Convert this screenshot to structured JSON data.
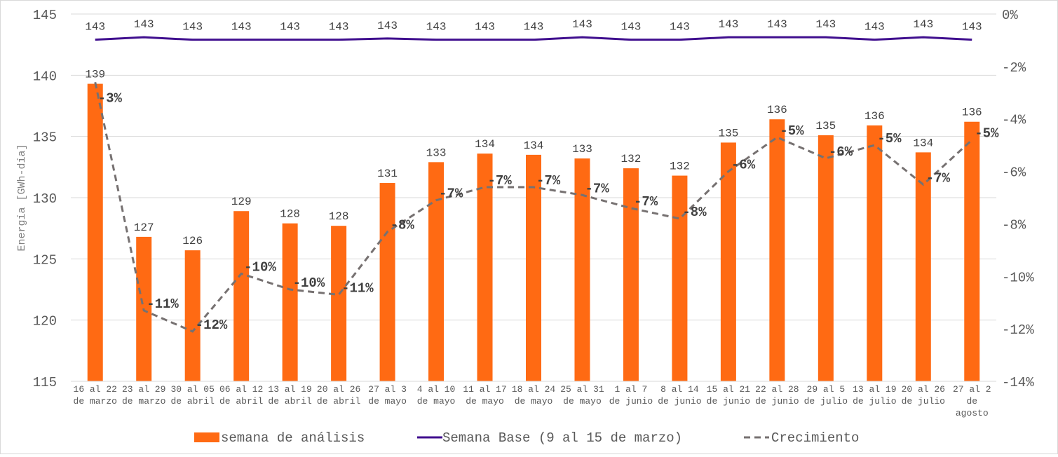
{
  "chart_data": {
    "type": "bar",
    "title": "",
    "xlabel": "",
    "ylabel": "Energía [GWh-día]",
    "ylim": [
      115,
      145
    ],
    "yticks": [
      115,
      120,
      125,
      130,
      135,
      140,
      145
    ],
    "y2lim": [
      -14,
      0
    ],
    "y2ticks": [
      "-14%",
      "-12%",
      "-10%",
      "-8%",
      "-6%",
      "-4%",
      "-2%",
      "0%"
    ],
    "y2tick_values": [
      -14,
      -12,
      -10,
      -8,
      -6,
      -4,
      -2,
      0
    ],
    "grid": true,
    "legend_position": "bottom",
    "categories": [
      [
        "16 al 22",
        "de marzo"
      ],
      [
        "23 al 29",
        "de marzo"
      ],
      [
        "30 al 05",
        "de abril"
      ],
      [
        "06 al 12",
        "de abril"
      ],
      [
        "13 al 19",
        "de abril"
      ],
      [
        "20 al 26",
        "de abril"
      ],
      [
        "27 al 3",
        "de mayo"
      ],
      [
        "4 al 10",
        "de mayo"
      ],
      [
        "11 al 17",
        "de mayo"
      ],
      [
        "18 al 24",
        "de mayo"
      ],
      [
        "25 al 31",
        "de mayo"
      ],
      [
        "1 al 7",
        "de junio"
      ],
      [
        "8 al 14",
        "de junio"
      ],
      [
        "15 al 21",
        "de junio"
      ],
      [
        "22 al 28",
        "de junio"
      ],
      [
        "29 al 5",
        "de julio"
      ],
      [
        "13 al 19",
        "de julio"
      ],
      [
        "20 al 26",
        "de julio"
      ],
      [
        "27 al 2",
        "de",
        "agosto"
      ]
    ],
    "series": [
      {
        "name": "semana de análisis",
        "type": "bar",
        "axis": "left",
        "color": "#FF6A13",
        "values": [
          139.3,
          126.8,
          125.7,
          128.9,
          127.9,
          127.7,
          131.2,
          132.9,
          133.6,
          133.5,
          133.2,
          132.4,
          131.8,
          134.5,
          136.4,
          135.1,
          135.9,
          133.7,
          136.2
        ],
        "labels": [
          "139",
          "127",
          "126",
          "129",
          "128",
          "128",
          "131",
          "133",
          "134",
          "134",
          "133",
          "132",
          "132",
          "135",
          "136",
          "135",
          "136",
          "134",
          "136"
        ]
      },
      {
        "name": "Semana Base (9 al 15 de marzo)",
        "type": "line",
        "axis": "left",
        "color": "#3F0E8E",
        "values": [
          142.9,
          143.1,
          142.9,
          142.9,
          142.9,
          142.9,
          143.0,
          142.9,
          142.9,
          142.9,
          143.1,
          142.9,
          142.9,
          143.1,
          143.1,
          143.1,
          142.9,
          143.1,
          142.9
        ],
        "labels": [
          "143",
          "143",
          "143",
          "143",
          "143",
          "143",
          "143",
          "143",
          "143",
          "143",
          "143",
          "143",
          "143",
          "143",
          "143",
          "143",
          "143",
          "143",
          "143"
        ]
      },
      {
        "name": "Crecimiento",
        "type": "line-dashed",
        "axis": "right",
        "color": "#767171",
        "values": [
          -2.6,
          -11.3,
          -12.1,
          -9.9,
          -10.5,
          -10.7,
          -8.3,
          -7.1,
          -6.6,
          -6.6,
          -6.9,
          -7.4,
          -7.8,
          -6.0,
          -4.7,
          -5.5,
          -5.0,
          -6.5,
          -4.8
        ],
        "labels": [
          "-3%",
          "-11%",
          "-12%",
          "-10%",
          "-10%",
          "-11%",
          "-8%",
          "-7%",
          "-7%",
          "-7%",
          "-7%",
          "-7%",
          "-8%",
          "-6%",
          "-5%",
          "-6%",
          "-5%",
          "-7%",
          "-5%"
        ]
      }
    ]
  }
}
